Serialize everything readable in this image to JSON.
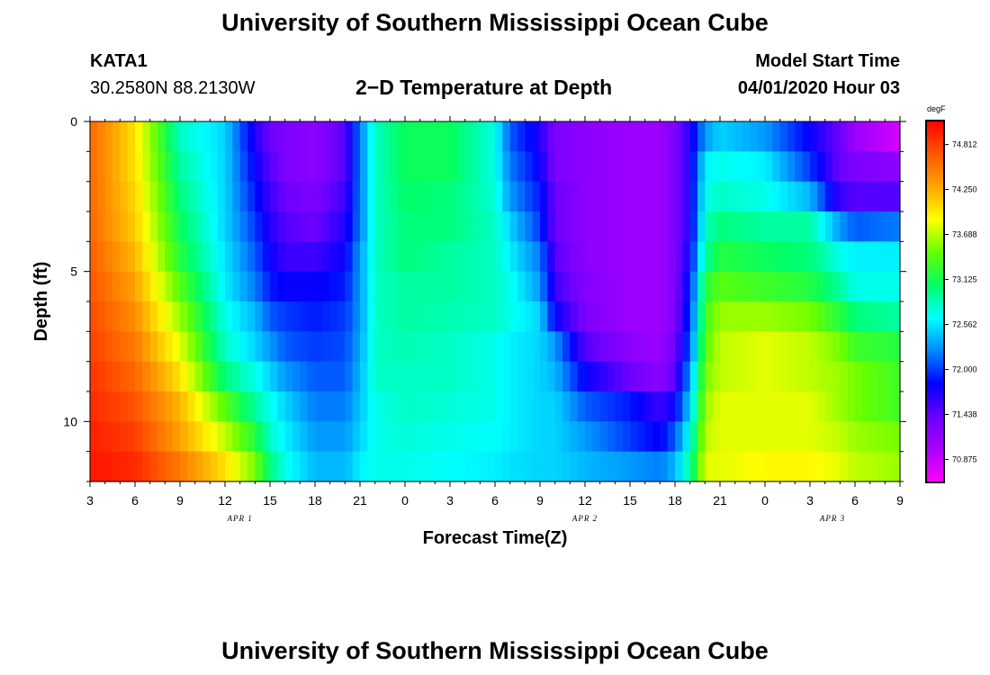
{
  "header": {
    "title": "University of Southern Mississippi Ocean Cube",
    "station": "KATA1",
    "coords": "30.2580N 88.2130W",
    "subtitle": "2−D Temperature at Depth",
    "model_label": "Model Start Time",
    "model_time": "04/01/2020 Hour 03"
  },
  "footer": {
    "title": "University of Southern Mississippi Ocean Cube"
  },
  "colors": {
    "palette": [
      "#ff00ff",
      "#aa00ff",
      "#6a00ff",
      "#0000ff",
      "#0088ff",
      "#00ffff",
      "#00ff66",
      "#66ff00",
      "#ffff00",
      "#ffa500",
      "#ff5500",
      "#ff0000"
    ]
  },
  "chart_data": {
    "type": "heatmap",
    "title": "2−D Temperature at Depth",
    "xlabel": "Forecast Time(Z)",
    "ylabel": "Depth (ft)",
    "units": "degF",
    "x_tick_labels": [
      "3",
      "6",
      "9",
      "12",
      "15",
      "18",
      "21",
      "0",
      "3",
      "6",
      "9",
      "12",
      "15",
      "18",
      "21",
      "0",
      "3",
      "6",
      "9"
    ],
    "x_range_hours": [
      0,
      54
    ],
    "x_major_step_hours": 3,
    "day_labels": [
      {
        "label": "APR 1",
        "hour": 10
      },
      {
        "label": "APR 2",
        "hour": 33
      },
      {
        "label": "APR 3",
        "hour": 49.5
      }
    ],
    "y_ticks": [
      0,
      5,
      10
    ],
    "y_range": [
      0,
      12
    ],
    "y_minor_step": 1,
    "colorbar_ticks": [
      "74.812",
      "74.250",
      "73.688",
      "73.125",
      "72.562",
      "72.000",
      "71.438",
      "70.875"
    ],
    "colorbar_range": [
      70.6,
      75.1
    ],
    "depth_levels_ft": [
      0.5,
      1.5,
      2.5,
      3.5,
      4.5,
      5.5,
      6.5,
      7.5,
      8.5,
      9.5,
      10.5,
      11.5
    ],
    "profile_hours": [
      0,
      3,
      6,
      9,
      11,
      12,
      13,
      15,
      17,
      18,
      19,
      21,
      24,
      27,
      28,
      30,
      31,
      33,
      36,
      38,
      39,
      40,
      41,
      42,
      45,
      48,
      50,
      51,
      54
    ],
    "temperature_profiles": [
      [
        74.6,
        74.6,
        74.6,
        74.6,
        74.65,
        74.7,
        74.75,
        74.8,
        74.85,
        74.9,
        74.95,
        75.0
      ],
      [
        74.0,
        74.0,
        74.05,
        74.1,
        74.2,
        74.3,
        74.4,
        74.5,
        74.6,
        74.7,
        74.8,
        74.9
      ],
      [
        72.8,
        72.9,
        73.0,
        73.1,
        73.2,
        73.4,
        73.6,
        73.8,
        74.0,
        74.2,
        74.3,
        74.5
      ],
      [
        72.5,
        72.5,
        72.5,
        72.5,
        72.55,
        72.6,
        72.7,
        72.8,
        73.0,
        73.4,
        73.7,
        74.0
      ],
      [
        71.7,
        71.8,
        71.9,
        72.0,
        72.1,
        72.2,
        72.4,
        72.5,
        72.7,
        72.9,
        73.2,
        73.5
      ],
      [
        71.4,
        71.5,
        71.6,
        71.7,
        71.8,
        71.9,
        72.1,
        72.3,
        72.5,
        72.7,
        72.8,
        73.0
      ],
      [
        71.3,
        71.3,
        71.4,
        71.5,
        71.6,
        71.8,
        72.0,
        72.1,
        72.3,
        72.5,
        72.6,
        72.7
      ],
      [
        71.2,
        71.2,
        71.3,
        71.4,
        71.6,
        71.8,
        71.9,
        72.0,
        72.1,
        72.2,
        72.3,
        72.4
      ],
      [
        71.5,
        71.5,
        71.6,
        71.7,
        71.8,
        71.9,
        72.0,
        72.05,
        72.1,
        72.2,
        72.3,
        72.4
      ],
      [
        72.2,
        72.2,
        72.2,
        72.2,
        72.3,
        72.3,
        72.3,
        72.35,
        72.4,
        72.45,
        72.5,
        72.6
      ],
      [
        72.8,
        72.8,
        72.8,
        72.8,
        72.8,
        72.8,
        72.8,
        72.8,
        72.8,
        72.7,
        72.7,
        72.7
      ],
      [
        73.1,
        73.1,
        73.05,
        73.0,
        73.0,
        72.9,
        72.9,
        72.85,
        72.8,
        72.8,
        72.75,
        72.7
      ],
      [
        73.1,
        73.1,
        73.0,
        73.0,
        72.9,
        72.9,
        72.85,
        72.8,
        72.8,
        72.75,
        72.7,
        72.65
      ],
      [
        72.7,
        72.7,
        72.75,
        72.8,
        72.8,
        72.8,
        72.8,
        72.7,
        72.7,
        72.7,
        72.65,
        72.6
      ],
      [
        72.1,
        72.2,
        72.3,
        72.5,
        72.6,
        72.7,
        72.7,
        72.6,
        72.6,
        72.6,
        72.6,
        72.55
      ],
      [
        71.7,
        71.8,
        71.9,
        72.0,
        72.2,
        72.3,
        72.5,
        72.5,
        72.5,
        72.5,
        72.5,
        72.5
      ],
      [
        71.3,
        71.3,
        71.4,
        71.4,
        71.5,
        71.6,
        71.8,
        72.3,
        72.4,
        72.5,
        72.5,
        72.5
      ],
      [
        71.2,
        71.2,
        71.2,
        71.2,
        71.2,
        71.25,
        71.3,
        71.5,
        71.8,
        72.1,
        72.3,
        72.4
      ],
      [
        71.1,
        71.1,
        71.1,
        71.1,
        71.1,
        71.1,
        71.1,
        71.2,
        71.4,
        71.9,
        72.0,
        72.3
      ],
      [
        71.1,
        71.1,
        71.1,
        71.1,
        71.1,
        71.1,
        71.1,
        71.1,
        71.2,
        71.6,
        71.8,
        72.2
      ],
      [
        71.3,
        71.3,
        71.3,
        71.3,
        71.3,
        71.3,
        71.3,
        71.4,
        71.5,
        71.8,
        72.1,
        72.4
      ],
      [
        71.7,
        71.7,
        71.7,
        71.7,
        71.8,
        71.9,
        72.0,
        72.1,
        72.3,
        72.5,
        72.7,
        72.9
      ],
      [
        72.3,
        72.6,
        72.7,
        72.8,
        72.9,
        73.2,
        73.3,
        73.4,
        73.5,
        73.6,
        73.7,
        73.8
      ],
      [
        72.5,
        72.7,
        72.8,
        73.0,
        73.2,
        73.4,
        73.6,
        73.7,
        73.7,
        73.8,
        73.8,
        73.8
      ],
      [
        72.3,
        72.6,
        72.7,
        72.9,
        73.1,
        73.3,
        73.6,
        73.8,
        73.8,
        73.8,
        73.8,
        73.9
      ],
      [
        71.8,
        72.0,
        72.4,
        72.9,
        73.0,
        73.2,
        73.5,
        73.7,
        73.7,
        73.8,
        73.8,
        73.9
      ],
      [
        71.4,
        71.4,
        71.6,
        72.3,
        72.7,
        72.9,
        73.2,
        73.5,
        73.6,
        73.6,
        73.7,
        73.8
      ],
      [
        71.1,
        71.3,
        71.5,
        72.1,
        72.6,
        72.7,
        73.0,
        73.3,
        73.5,
        73.5,
        73.6,
        73.7
      ],
      [
        70.8,
        71.2,
        71.5,
        72.2,
        72.6,
        72.7,
        72.9,
        73.2,
        73.3,
        73.3,
        73.5,
        73.6
      ]
    ]
  }
}
